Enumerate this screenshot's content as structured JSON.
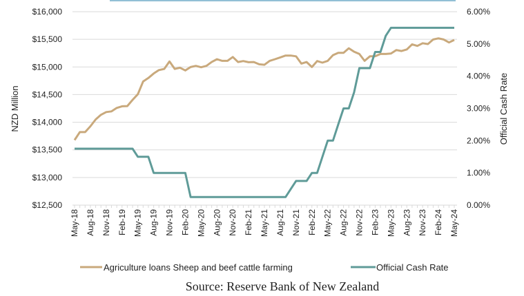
{
  "chart_data": {
    "type": "line",
    "title": "",
    "source": "Source: Reserve Bank of New Zealand",
    "x_tick_labels": [
      "May-18",
      "Aug-18",
      "Nov-18",
      "Feb-19",
      "May-19",
      "Aug-19",
      "Nov-19",
      "Feb-20",
      "May-20",
      "Aug-20",
      "Nov-20",
      "Feb-21",
      "May-21",
      "Aug-21",
      "Nov-21",
      "Feb-22",
      "May-22",
      "Aug-22",
      "Nov-22",
      "Feb-23",
      "May-23",
      "Aug-23",
      "Nov-23",
      "Feb-24",
      "May-24"
    ],
    "x_range": [
      "May-18",
      "May-24"
    ],
    "x_frequency": "monthly",
    "y_left": {
      "label": "NZD Million",
      "range": [
        12500,
        16000
      ],
      "ticks": [
        "$12,500",
        "$13,000",
        "$13,500",
        "$14,000",
        "$14,500",
        "$15,000",
        "$15,500",
        "$16,000"
      ],
      "tick_values": [
        12500,
        13000,
        13500,
        14000,
        14500,
        15000,
        15500,
        16000
      ]
    },
    "y_right": {
      "label": "Official Cash Rate",
      "range": [
        0,
        6
      ],
      "ticks": [
        "0.00%",
        "1.00%",
        "2.00%",
        "3.00%",
        "4.00%",
        "5.00%",
        "6.00%"
      ],
      "tick_values": [
        0,
        1,
        2,
        3,
        4,
        5,
        6
      ]
    },
    "grid": true,
    "legend_position": "bottom",
    "series": [
      {
        "name": "Agriculture loans Sheep and beef cattle farming",
        "axis": "left",
        "color": "#c9a97c",
        "values": [
          13677,
          13822,
          13822,
          13926,
          14051,
          14134,
          14184,
          14196,
          14259,
          14288,
          14292,
          14404,
          14508,
          14737,
          14800,
          14882,
          14944,
          14965,
          15099,
          14965,
          14986,
          14937,
          14999,
          15020,
          14995,
          15020,
          15090,
          15140,
          15111,
          15111,
          15181,
          15090,
          15107,
          15086,
          15090,
          15049,
          15040,
          15111,
          15140,
          15173,
          15206,
          15206,
          15193,
          15061,
          15090,
          14999,
          15107,
          15078,
          15111,
          15214,
          15256,
          15256,
          15339,
          15276,
          15235,
          15111,
          15193,
          15193,
          15235,
          15235,
          15243,
          15306,
          15289,
          15318,
          15410,
          15381,
          15430,
          15414,
          15497,
          15518,
          15497,
          15443,
          15489
        ]
      },
      {
        "name": "Official Cash Rate",
        "axis": "right",
        "color": "#5f9b98",
        "values": [
          1.75,
          1.75,
          1.75,
          1.75,
          1.75,
          1.75,
          1.75,
          1.75,
          1.75,
          1.75,
          1.75,
          1.75,
          1.5,
          1.5,
          1.5,
          1.0,
          1.0,
          1.0,
          1.0,
          1.0,
          1.0,
          1.0,
          0.25,
          0.25,
          0.25,
          0.25,
          0.25,
          0.25,
          0.25,
          0.25,
          0.25,
          0.25,
          0.25,
          0.25,
          0.25,
          0.25,
          0.25,
          0.25,
          0.25,
          0.25,
          0.25,
          0.5,
          0.75,
          0.75,
          0.75,
          1.0,
          1.0,
          1.5,
          2.0,
          2.0,
          2.5,
          3.0,
          3.0,
          3.5,
          4.25,
          4.25,
          4.25,
          4.75,
          4.75,
          5.25,
          5.5,
          5.5,
          5.5,
          5.5,
          5.5,
          5.5,
          5.5,
          5.5,
          5.5,
          5.5,
          5.5,
          5.5,
          5.5
        ]
      }
    ]
  }
}
